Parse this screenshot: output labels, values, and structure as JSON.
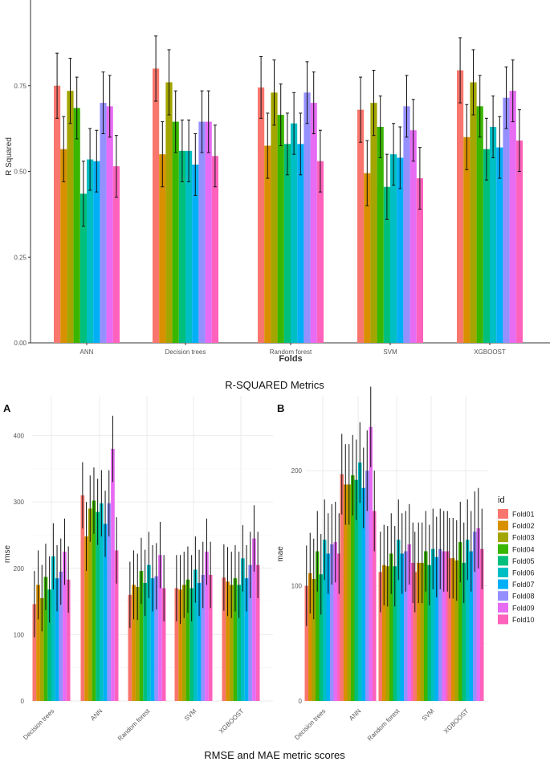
{
  "figure": {
    "caption_top": "R-SQUARED Metrics",
    "caption_bottom": "RMSE and MAE metric scores",
    "panel_labels": [
      "A",
      "B"
    ]
  },
  "series_colors": [
    "#F8766D",
    "#D89000",
    "#A3A500",
    "#39B600",
    "#00BF7D",
    "#00BFC4",
    "#00B0F6",
    "#9590FF",
    "#E76BF3",
    "#FF62BC"
  ],
  "chart_data": [
    {
      "id": "r2",
      "type": "bar",
      "title": "",
      "xlabel": "Folds",
      "ylabel": "R Squared",
      "ylim": [
        0,
        1.0
      ],
      "yticks": [
        0.0,
        0.25,
        0.5,
        0.75
      ],
      "ytick_labels": [
        "0.00",
        "0.25",
        "0.50",
        "0.75"
      ],
      "grid": false,
      "categories": [
        "ANN",
        "Decision trees",
        "Random forest",
        "SVM",
        "XGBOOST"
      ],
      "series": [
        {
          "name": "Fold01",
          "values": [
            0.75,
            0.8,
            0.745,
            0.68,
            0.795
          ],
          "err": [
            0.095,
            0.095,
            0.09,
            0.095,
            0.095
          ]
        },
        {
          "name": "Fold02",
          "values": [
            0.565,
            0.55,
            0.575,
            0.495,
            0.6
          ],
          "err": [
            0.095,
            0.095,
            0.095,
            0.095,
            0.095
          ]
        },
        {
          "name": "Fold03",
          "values": [
            0.735,
            0.76,
            0.73,
            0.7,
            0.76
          ],
          "err": [
            0.095,
            0.095,
            0.095,
            0.095,
            0.095
          ]
        },
        {
          "name": "Fold04",
          "values": [
            0.685,
            0.645,
            0.665,
            0.63,
            0.69
          ],
          "err": [
            0.09,
            0.09,
            0.09,
            0.09,
            0.09
          ]
        },
        {
          "name": "Fold05",
          "values": [
            0.435,
            0.56,
            0.58,
            0.455,
            0.565
          ],
          "err": [
            0.095,
            0.09,
            0.09,
            0.095,
            0.09
          ]
        },
        {
          "name": "Fold06",
          "values": [
            0.535,
            0.56,
            0.64,
            0.55,
            0.63
          ],
          "err": [
            0.09,
            0.09,
            0.09,
            0.09,
            0.09
          ]
        },
        {
          "name": "Fold07",
          "values": [
            0.53,
            0.52,
            0.58,
            0.54,
            0.57
          ],
          "err": [
            0.09,
            0.09,
            0.09,
            0.09,
            0.09
          ]
        },
        {
          "name": "Fold08",
          "values": [
            0.7,
            0.645,
            0.73,
            0.69,
            0.715
          ],
          "err": [
            0.09,
            0.09,
            0.09,
            0.09,
            0.09
          ]
        },
        {
          "name": "Fold09",
          "values": [
            0.69,
            0.645,
            0.7,
            0.62,
            0.735
          ],
          "err": [
            0.09,
            0.09,
            0.09,
            0.09,
            0.09
          ]
        },
        {
          "name": "Fold10",
          "values": [
            0.515,
            0.545,
            0.53,
            0.48,
            0.59
          ],
          "err": [
            0.09,
            0.09,
            0.09,
            0.09,
            0.09
          ]
        }
      ]
    },
    {
      "id": "rmse",
      "type": "bar",
      "title": "",
      "xlabel": "",
      "ylabel": "rmse",
      "ylim": [
        0,
        460
      ],
      "yticks": [
        0,
        100,
        200,
        300,
        400
      ],
      "ytick_labels": [
        "0",
        "100",
        "200",
        "300",
        "400"
      ],
      "grid": true,
      "categories": [
        "Decision trees",
        "ANN",
        "Random forest",
        "SVM",
        "XGBOOST"
      ],
      "series": [
        {
          "name": "Fold01",
          "values": [
            146,
            310,
            160,
            170,
            186
          ],
          "err": [
            50,
            50,
            50,
            50,
            50
          ]
        },
        {
          "name": "Fold02",
          "values": [
            175,
            248,
            175,
            168,
            180
          ],
          "err": [
            52,
            52,
            52,
            52,
            52
          ]
        },
        {
          "name": "Fold03",
          "values": [
            155,
            290,
            172,
            175,
            175
          ],
          "err": [
            50,
            50,
            50,
            50,
            50
          ]
        },
        {
          "name": "Fold04",
          "values": [
            187,
            302,
            196,
            183,
            185
          ],
          "err": [
            50,
            50,
            50,
            50,
            50
          ]
        },
        {
          "name": "Fold05",
          "values": [
            168,
            285,
            178,
            170,
            175
          ],
          "err": [
            50,
            50,
            50,
            50,
            50
          ]
        },
        {
          "name": "Fold06",
          "values": [
            218,
            298,
            205,
            198,
            215
          ],
          "err": [
            50,
            50,
            50,
            50,
            50
          ]
        },
        {
          "name": "Fold07",
          "values": [
            185,
            267,
            185,
            178,
            185
          ],
          "err": [
            50,
            50,
            50,
            50,
            50
          ]
        },
        {
          "name": "Fold08",
          "values": [
            195,
            298,
            188,
            190,
            205
          ],
          "err": [
            50,
            50,
            50,
            50,
            50
          ]
        },
        {
          "name": "Fold09",
          "values": [
            225,
            380,
            220,
            225,
            245
          ],
          "err": [
            50,
            50,
            50,
            50,
            50
          ]
        },
        {
          "name": "Fold10",
          "values": [
            183,
            227,
            170,
            190,
            205
          ],
          "err": [
            50,
            50,
            50,
            50,
            50
          ]
        }
      ]
    },
    {
      "id": "mae",
      "type": "bar",
      "title": "",
      "xlabel": "",
      "ylabel": "mae",
      "ylim": [
        0,
        265
      ],
      "yticks": [
        0,
        100,
        200
      ],
      "ytick_labels": [
        "0",
        "100",
        "200"
      ],
      "grid": true,
      "categories": [
        "Decision trees",
        "ANN",
        "Random forest",
        "SVM",
        "XGBOOST"
      ],
      "legend_title": "id",
      "legend_position": "right",
      "series": [
        {
          "name": "Fold01",
          "values": [
            100,
            197,
            112,
            112,
            124
          ],
          "err": [
            35,
            35,
            35,
            35,
            35
          ]
        },
        {
          "name": "Fold02",
          "values": [
            111,
            188,
            118,
            120,
            124
          ],
          "err": [
            35,
            35,
            35,
            35,
            35
          ]
        },
        {
          "name": "Fold03",
          "values": [
            106,
            188,
            117,
            120,
            122
          ],
          "err": [
            35,
            35,
            35,
            35,
            35
          ]
        },
        {
          "name": "Fold04",
          "values": [
            130,
            196,
            128,
            130,
            138
          ],
          "err": [
            35,
            35,
            35,
            35,
            35
          ]
        },
        {
          "name": "Fold05",
          "values": [
            110,
            192,
            117,
            118,
            120
          ],
          "err": [
            35,
            35,
            35,
            35,
            35
          ]
        },
        {
          "name": "Fold06",
          "values": [
            140,
            207,
            140,
            132,
            140
          ],
          "err": [
            35,
            35,
            35,
            35,
            35
          ]
        },
        {
          "name": "Fold07",
          "values": [
            128,
            185,
            128,
            125,
            130
          ],
          "err": [
            35,
            35,
            35,
            35,
            35
          ]
        },
        {
          "name": "Fold08",
          "values": [
            136,
            200,
            130,
            132,
            147
          ],
          "err": [
            35,
            35,
            35,
            35,
            35
          ]
        },
        {
          "name": "Fold09",
          "values": [
            138,
            238,
            136,
            130,
            150
          ],
          "err": [
            35,
            35,
            35,
            35,
            35
          ]
        },
        {
          "name": "Fold10",
          "values": [
            128,
            165,
            120,
            130,
            132
          ],
          "err": [
            35,
            35,
            35,
            35,
            35
          ]
        }
      ]
    }
  ]
}
